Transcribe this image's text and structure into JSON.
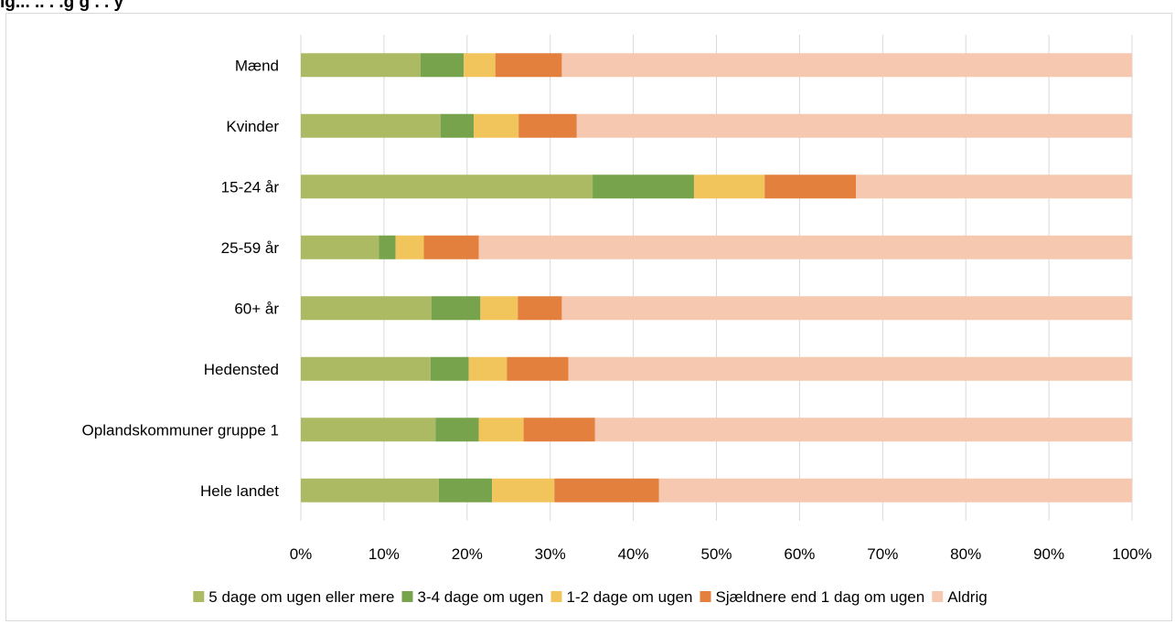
{
  "chart_data": {
    "type": "bar",
    "orientation": "horizontal",
    "stacked": "percent",
    "title": "",
    "categories": [
      "Mænd",
      "Kvinder",
      "15-24 år",
      "25-59 år",
      "60+ år",
      "Hedensted",
      "Oplandskommuner gruppe 1",
      "Hele landet"
    ],
    "series": [
      {
        "name": "5 dage om ugen eller mere",
        "color": "#adba64",
        "values": [
          14.4,
          16.8,
          35.1,
          9.4,
          15.7,
          15.6,
          16.2,
          16.6
        ]
      },
      {
        "name": "3-4 dage om ugen",
        "color": "#76a34c",
        "values": [
          5.2,
          4.0,
          12.2,
          2.0,
          5.9,
          4.6,
          5.2,
          6.4
        ]
      },
      {
        "name": "1-2 dage om ugen",
        "color": "#f2c45c",
        "values": [
          3.8,
          5.4,
          8.5,
          3.4,
          4.5,
          4.6,
          5.4,
          7.5
        ]
      },
      {
        "name": "Sjældnere end 1 dag om ugen",
        "color": "#e3803e",
        "values": [
          8.0,
          7.0,
          11.0,
          6.6,
          5.3,
          7.4,
          8.6,
          12.6
        ]
      },
      {
        "name": "Aldrig",
        "color": "#f5c8af",
        "values": [
          68.6,
          66.8,
          33.2,
          78.6,
          68.6,
          67.8,
          64.6,
          56.9
        ]
      }
    ],
    "xticks": [
      "0%",
      "10%",
      "20%",
      "30%",
      "40%",
      "50%",
      "60%",
      "70%",
      "80%",
      "90%",
      "100%"
    ],
    "xlim": [
      0,
      100
    ],
    "grid": "vertical",
    "legend": "bottom",
    "gridline_color": "#d9d9d9"
  },
  "header": {
    "title_partial": "ig... .. .  .g   g  . . y"
  }
}
